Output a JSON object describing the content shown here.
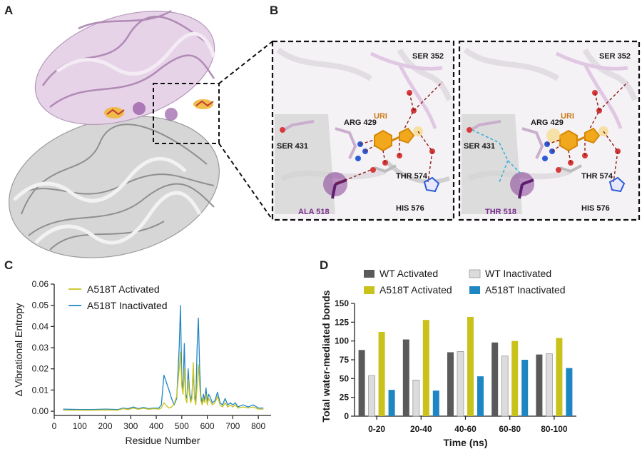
{
  "panels": {
    "a": "A",
    "b": "B",
    "c": "C",
    "d": "D"
  },
  "structure_labels": {
    "left": {
      "ser352": "SER 352",
      "arg429": "ARG 429",
      "uri": "URI",
      "ser431": "SER 431",
      "thr574": "THR 574",
      "his576": "HIS 576",
      "mutant": "ALA 518"
    },
    "right": {
      "ser352": "SER 352",
      "arg429": "ARG 429",
      "uri": "URI",
      "ser431": "SER 431",
      "thr574": "THR 574",
      "his576": "HIS 576",
      "mutant": "THR 518"
    }
  },
  "colors": {
    "gold": "#e8a317",
    "purple": "#7b2d8e",
    "lavender": "#d9bfdc",
    "grey_protein": "#c8c8c8",
    "a518t_activated": "#c9c21a",
    "a518t_inactivated": "#1f86c4",
    "wt_activated": "#5a5a5a",
    "wt_inactivated": "#dcdcdc"
  },
  "chart_data": [
    {
      "panel": "C",
      "type": "line",
      "xlabel": "Residue Number",
      "ylabel": "Δ Vibrational Entropy",
      "xlim": [
        0,
        850
      ],
      "ylim": [
        -0.002,
        0.06
      ],
      "x_ticks": [
        0,
        100,
        200,
        300,
        400,
        500,
        600,
        700,
        800
      ],
      "y_ticks": [
        "0.00",
        "0.01",
        "0.02",
        "0.03",
        "0.04",
        "0.05",
        "0.06"
      ],
      "legend_position": "top-left",
      "series": [
        {
          "name": "A518T Activated",
          "color": "#c9c21a",
          "x": [
            35,
            100,
            150,
            200,
            250,
            270,
            290,
            310,
            330,
            350,
            370,
            390,
            410,
            420,
            430,
            440,
            450,
            460,
            470,
            480,
            490,
            495,
            500,
            505,
            510,
            515,
            520,
            525,
            530,
            535,
            540,
            545,
            550,
            555,
            560,
            565,
            570,
            575,
            580,
            585,
            590,
            595,
            600,
            605,
            610,
            620,
            630,
            640,
            650,
            660,
            670,
            680,
            690,
            700,
            710,
            720,
            740,
            760,
            780,
            800,
            820
          ],
          "y": [
            0.0005,
            0.0005,
            0.0005,
            0.0006,
            0.0005,
            0.0012,
            0.0008,
            0.0015,
            0.0009,
            0.0014,
            0.0009,
            0.0012,
            0.001,
            0.0015,
            0.004,
            0.0025,
            0.0015,
            0.002,
            0.0035,
            0.007,
            0.02,
            0.028,
            0.012,
            0.008,
            0.02,
            0.006,
            0.004,
            0.015,
            0.008,
            0.004,
            0.006,
            0.023,
            0.006,
            0.003,
            0.012,
            0.022,
            0.012,
            0.005,
            0.003,
            0.006,
            0.004,
            0.008,
            0.003,
            0.006,
            0.005,
            0.003,
            0.004,
            0.007,
            0.003,
            0.002,
            0.004,
            0.002,
            0.003,
            0.002,
            0.003,
            0.0015,
            0.002,
            0.0015,
            0.002,
            0.001,
            0.001
          ]
        },
        {
          "name": "A518T Inactivated",
          "color": "#1f86c4",
          "x": [
            35,
            100,
            150,
            200,
            250,
            270,
            290,
            310,
            330,
            350,
            370,
            390,
            410,
            420,
            430,
            440,
            450,
            460,
            470,
            480,
            490,
            495,
            500,
            505,
            510,
            515,
            520,
            525,
            530,
            535,
            540,
            545,
            550,
            555,
            560,
            565,
            570,
            575,
            580,
            585,
            590,
            595,
            600,
            605,
            610,
            620,
            630,
            640,
            650,
            660,
            670,
            680,
            690,
            700,
            710,
            720,
            740,
            760,
            780,
            800,
            820
          ],
          "y": [
            0.001,
            0.0008,
            0.0008,
            0.001,
            0.0008,
            0.0015,
            0.0012,
            0.002,
            0.0012,
            0.0018,
            0.0012,
            0.0015,
            0.0015,
            0.003,
            0.017,
            0.0135,
            0.01,
            0.006,
            0.003,
            0.006,
            0.03,
            0.05,
            0.015,
            0.01,
            0.032,
            0.008,
            0.006,
            0.02,
            0.01,
            0.005,
            0.008,
            0.018,
            0.008,
            0.004,
            0.03,
            0.044,
            0.02,
            0.007,
            0.004,
            0.008,
            0.005,
            0.011,
            0.004,
            0.008,
            0.007,
            0.004,
            0.005,
            0.009,
            0.004,
            0.003,
            0.006,
            0.003,
            0.004,
            0.003,
            0.004,
            0.002,
            0.003,
            0.002,
            0.003,
            0.0015,
            0.0015
          ]
        }
      ]
    },
    {
      "panel": "D",
      "type": "bar",
      "xlabel": "Time (ns)",
      "ylabel": "Total water-mediated bonds",
      "ylim": [
        0,
        150
      ],
      "y_ticks": [
        0,
        25,
        50,
        75,
        100,
        125,
        150
      ],
      "categories": [
        "0-20",
        "20-40",
        "40-60",
        "60-80",
        "80-100"
      ],
      "legend_position": "top",
      "series": [
        {
          "name": "WT Activated",
          "color": "#5a5a5a",
          "values": [
            88,
            102,
            85,
            98,
            82
          ]
        },
        {
          "name": "WT Inactivated",
          "color": "#dcdcdc",
          "values": [
            54,
            48,
            86,
            80,
            83
          ]
        },
        {
          "name": "A518T Activated",
          "color": "#c9c21a",
          "values": [
            112,
            128,
            132,
            100,
            104
          ]
        },
        {
          "name": "A518T Inactivated",
          "color": "#1f86c4",
          "values": [
            35,
            34,
            53,
            75,
            64
          ]
        }
      ]
    }
  ]
}
